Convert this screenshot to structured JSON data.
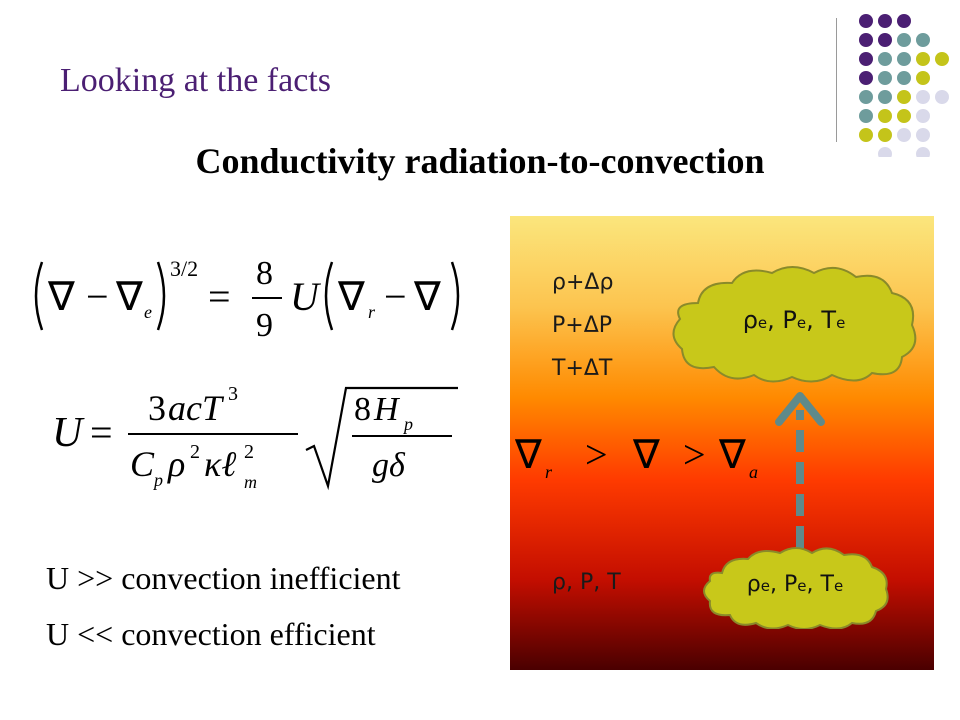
{
  "header": {
    "subtitle": "Looking at the facts",
    "title": "Conductivity radiation-to-convection"
  },
  "equations": {
    "eq1": "(∇ − ∇ₑ)^{3/2} = 8/9 U(∇ᵣ − ∇)",
    "eq2": "U = 3acT³ / (C_p ρ² κ ℓ²_m) √(8H_p / gδ)",
    "eq3": "∇ᵣ > ∇ > ∇ₐ"
  },
  "statements": {
    "line1": "U >> convection inefficient",
    "line2": "U << convection efficient"
  },
  "panel": {
    "upper_labels": [
      "ρ+Δρ",
      "P+ΔP",
      "T+ΔT"
    ],
    "lower_label": "ρ, P, T",
    "cloud_top": {
      "rho": "ρ",
      "p": "P",
      "t": "T",
      "sub": "e",
      "sep": ", "
    },
    "cloud_bottom": {
      "rho": "ρ",
      "p": "P",
      "t": "T",
      "sub": "e",
      "sep": ", "
    }
  },
  "colors": {
    "subtitle": "#4b1f73",
    "dot_purple": "#4b1f73",
    "dot_teal": "#6e9c9c",
    "dot_olive": "#c4c41a",
    "dot_lavender": "#d9d9ea",
    "cloud_fill": "#c8c81a",
    "arrow": "#5f8a8a"
  }
}
